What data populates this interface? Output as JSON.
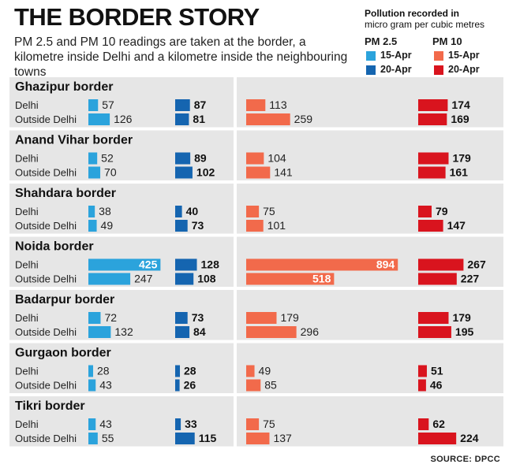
{
  "title": "THE BORDER STORY",
  "subtitle": "PM 2.5 and PM 10 readings are taken at the border, a kilometre inside Delhi and a kilometre inside the neighbouring towns",
  "legend": {
    "title": "Pollution recorded in",
    "subtitle": "micro gram per cubic metres",
    "pm25_label": "PM 2.5",
    "pm10_label": "PM 10",
    "dates": [
      "15-Apr",
      "20-Apr"
    ]
  },
  "colors": {
    "pm25_15apr": "#2ba3dc",
    "pm25_20apr": "#1565b0",
    "pm10_15apr": "#f26a4b",
    "pm10_20apr": "#d9141e"
  },
  "source": "SOURCE: DPCC",
  "chart_data": {
    "type": "bar",
    "orientation": "horizontal",
    "row_labels": [
      "Delhi",
      "Outside Delhi"
    ],
    "series": [
      {
        "name": "PM 2.5 15-Apr",
        "key": "pm25_15"
      },
      {
        "name": "PM 2.5 20-Apr",
        "key": "pm25_20"
      },
      {
        "name": "PM 10 15-Apr",
        "key": "pm10_15"
      },
      {
        "name": "PM 10 20-Apr",
        "key": "pm10_20"
      }
    ],
    "groups": [
      {
        "name": "Ghazipur border",
        "pm25_15": [
          57,
          126
        ],
        "pm25_20": [
          87,
          81
        ],
        "pm10_15": [
          113,
          259
        ],
        "pm10_20": [
          174,
          169
        ]
      },
      {
        "name": "Anand Vihar border",
        "pm25_15": [
          52,
          70
        ],
        "pm25_20": [
          89,
          102
        ],
        "pm10_15": [
          104,
          141
        ],
        "pm10_20": [
          179,
          161
        ]
      },
      {
        "name": "Shahdara border",
        "pm25_15": [
          38,
          49
        ],
        "pm25_20": [
          40,
          73
        ],
        "pm10_15": [
          75,
          101
        ],
        "pm10_20": [
          79,
          147
        ]
      },
      {
        "name": "Noida border",
        "pm25_15": [
          425,
          247
        ],
        "pm25_20": [
          128,
          108
        ],
        "pm10_15": [
          894,
          518
        ],
        "pm10_20": [
          267,
          227
        ]
      },
      {
        "name": "Badarpur border",
        "pm25_15": [
          72,
          132
        ],
        "pm25_20": [
          73,
          84
        ],
        "pm10_15": [
          179,
          296
        ],
        "pm10_20": [
          179,
          195
        ]
      },
      {
        "name": "Gurgaon border",
        "pm25_15": [
          28,
          43
        ],
        "pm25_20": [
          28,
          26
        ],
        "pm10_15": [
          49,
          85
        ],
        "pm10_20": [
          51,
          46
        ]
      },
      {
        "name": "Tikri border",
        "pm25_15": [
          43,
          55
        ],
        "pm25_20": [
          33,
          115
        ],
        "pm10_15": [
          75,
          137
        ],
        "pm10_20": [
          62,
          224
        ]
      }
    ]
  }
}
